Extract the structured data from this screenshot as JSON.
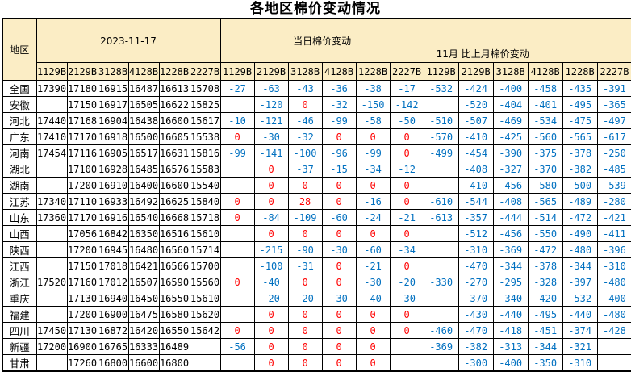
{
  "colors": {
    "header_bg": "#FBEDC5",
    "negative_value": "#0070C0",
    "non_negative_value": "#FF0000",
    "price_value": "#000000",
    "border": "#000000"
  },
  "chart_data": {
    "type": "table",
    "title": "各地区棉价变动情况",
    "region_header": "地区",
    "column_groups": [
      {
        "label": "2023-11-17",
        "columns": [
          "1129B",
          "2129B",
          "3128B",
          "4128B",
          "1228B",
          "2227B"
        ]
      },
      {
        "label": "当日棉价变动",
        "columns": [
          "1129B",
          "2129B",
          "3128B",
          "4128B",
          "1228B",
          "2227B"
        ]
      },
      {
        "label": "11月 比上月棉价变动",
        "columns": [
          "1129B",
          "2129B",
          "3128B",
          "4128B",
          "1228B",
          "2227B"
        ]
      }
    ],
    "rows": [
      {
        "region": "全国",
        "prices": [
          17390,
          17180,
          16915,
          16487,
          16613,
          15708
        ],
        "daily": [
          -27,
          -63,
          -43,
          -36,
          -38,
          -17
        ],
        "monthly": [
          -532,
          -424,
          -400,
          -458,
          -435,
          -391
        ]
      },
      {
        "region": "安徽",
        "prices": [
          "",
          17150,
          16917,
          16505,
          16622,
          15825
        ],
        "daily": [
          "",
          -120,
          0,
          -32,
          -150,
          -142
        ],
        "monthly": [
          "",
          -520,
          -404,
          -401,
          -495,
          -365
        ]
      },
      {
        "region": "河北",
        "prices": [
          17440,
          17168,
          16904,
          16438,
          16600,
          15617
        ],
        "daily": [
          -10,
          -121,
          -46,
          -99,
          -58,
          -50
        ],
        "monthly": [
          -510,
          -507,
          -469,
          -534,
          -475,
          -497
        ]
      },
      {
        "region": "广东",
        "prices": [
          17410,
          17170,
          16918,
          16500,
          16605,
          15538
        ],
        "daily": [
          0,
          -30,
          -32,
          0,
          0,
          0
        ],
        "monthly": [
          -570,
          -410,
          -425,
          -560,
          -565,
          -617
        ]
      },
      {
        "region": "河南",
        "prices": [
          17454,
          17116,
          16905,
          16517,
          16631,
          15816
        ],
        "daily": [
          -99,
          -141,
          -100,
          -96,
          -99,
          0
        ],
        "monthly": [
          -499,
          -454,
          -390,
          -375,
          -378,
          -250
        ]
      },
      {
        "region": "湖北",
        "prices": [
          "",
          17100,
          16928,
          16485,
          16576,
          15583
        ],
        "daily": [
          "",
          0,
          -37,
          -15,
          -34,
          -12
        ],
        "monthly": [
          "",
          -408,
          -327,
          -370,
          -382,
          -485
        ]
      },
      {
        "region": "湖南",
        "prices": [
          "",
          17200,
          16910,
          16400,
          16600,
          15540
        ],
        "daily": [
          "",
          0,
          0,
          0,
          0,
          0
        ],
        "monthly": [
          "",
          -410,
          -456,
          -580,
          -500,
          -539
        ]
      },
      {
        "region": "江苏",
        "prices": [
          17340,
          17110,
          16933,
          16492,
          16625,
          15840
        ],
        "daily": [
          0,
          0,
          28,
          0,
          -16,
          0
        ],
        "monthly": [
          -610,
          -544,
          -408,
          -565,
          -489,
          -280
        ]
      },
      {
        "region": "山东",
        "prices": [
          17360,
          17170,
          16916,
          16540,
          16668,
          15718
        ],
        "daily": [
          0,
          -84,
          -109,
          -60,
          -24,
          -21
        ],
        "monthly": [
          -613,
          -357,
          -444,
          -514,
          -472,
          -421
        ]
      },
      {
        "region": "山西",
        "prices": [
          "",
          17056,
          16842,
          16350,
          16516,
          15610
        ],
        "daily": [
          "",
          0,
          0,
          0,
          0,
          0
        ],
        "monthly": [
          "",
          -512,
          -456,
          -550,
          -490,
          -411
        ]
      },
      {
        "region": "陕西",
        "prices": [
          "",
          17200,
          16945,
          16480,
          16560,
          15714
        ],
        "daily": [
          "",
          -215,
          -90,
          -30,
          -60,
          -34
        ],
        "monthly": [
          "",
          -310,
          -369,
          -472,
          -480,
          -396
        ]
      },
      {
        "region": "江西",
        "prices": [
          "",
          17150,
          17018,
          16421,
          16566,
          15700
        ],
        "daily": [
          "",
          -100,
          -31,
          0,
          -21,
          0
        ],
        "monthly": [
          "",
          -470,
          -344,
          -378,
          -344,
          -310
        ]
      },
      {
        "region": "浙江",
        "prices": [
          17520,
          17160,
          17012,
          16507,
          16590,
          15560
        ],
        "daily": [
          0,
          -40,
          0,
          0,
          -30,
          -20
        ],
        "monthly": [
          -330,
          -270,
          -295,
          -328,
          -397,
          -480
        ]
      },
      {
        "region": "重庆",
        "prices": [
          "",
          17130,
          16940,
          16450,
          16550,
          15610
        ],
        "daily": [
          "",
          -20,
          -20,
          -30,
          -40,
          -30
        ],
        "monthly": [
          "",
          -370,
          -340,
          -420,
          -532,
          -400
        ]
      },
      {
        "region": "福建",
        "prices": [
          "",
          17200,
          16900,
          16475,
          16580,
          15620
        ],
        "daily": [
          "",
          0,
          0,
          0,
          0,
          0
        ],
        "monthly": [
          "",
          -430,
          -440,
          -495,
          -440,
          -480
        ]
      },
      {
        "region": "四川",
        "prices": [
          17450,
          17130,
          16872,
          16420,
          16550,
          15642
        ],
        "daily": [
          0,
          0,
          0,
          0,
          0,
          0
        ],
        "monthly": [
          -460,
          -470,
          -418,
          -451,
          -374,
          -428
        ]
      },
      {
        "region": "新疆",
        "prices": [
          17200,
          16900,
          16765,
          16333,
          16489,
          ""
        ],
        "daily": [
          -56,
          0,
          0,
          0,
          0,
          ""
        ],
        "monthly": [
          -369,
          -382,
          -313,
          -344,
          -321,
          ""
        ]
      },
      {
        "region": "甘肃",
        "prices": [
          "",
          17260,
          16800,
          16600,
          16800,
          ""
        ],
        "daily": [
          "",
          0,
          0,
          0,
          0,
          ""
        ],
        "monthly": [
          "",
          -300,
          -400,
          -350,
          -310,
          ""
        ]
      }
    ]
  }
}
